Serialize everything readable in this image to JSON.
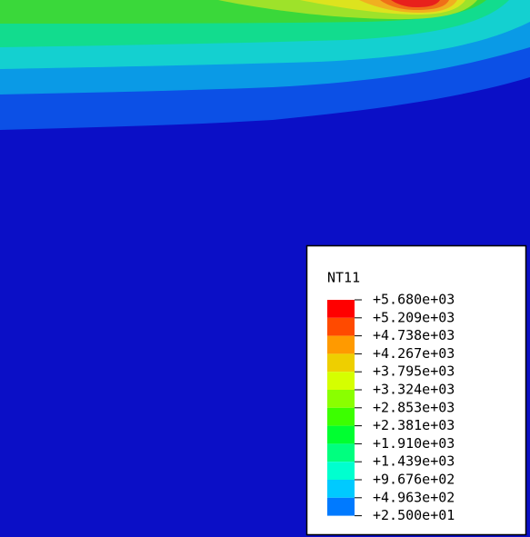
{
  "legend": {
    "title": "NT11",
    "labels": [
      "+5.680e+03",
      "+5.209e+03",
      "+4.738e+03",
      "+4.267e+03",
      "+3.795e+03",
      "+3.324e+03",
      "+2.853e+03",
      "+2.381e+03",
      "+1.910e+03",
      "+1.439e+03",
      "+9.676e+02",
      "+4.963e+02",
      "+2.500e+01"
    ]
  }
}
